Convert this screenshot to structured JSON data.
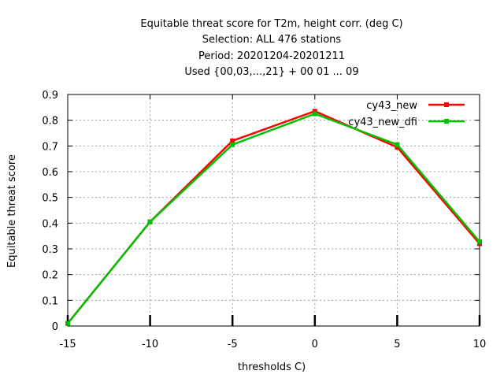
{
  "chart_data": {
    "type": "line",
    "title_lines": [
      "Equitable threat score  for T2m, height corr. (deg C)",
      "Selection: ALL    476 stations",
      "Period: 20201204-20201211",
      "Used {00,03,...,21} + 00 01 ... 09"
    ],
    "xlabel": "thresholds C)",
    "ylabel": "Equitable threat score",
    "xlim": [
      -15,
      10
    ],
    "ylim": [
      0,
      0.9
    ],
    "xticks": [
      -15,
      -10,
      -5,
      0,
      5,
      10
    ],
    "yticks": [
      0,
      0.1,
      0.2,
      0.3,
      0.4,
      0.5,
      0.6,
      0.7,
      0.8,
      0.9
    ],
    "xtick_labels": [
      "-15",
      "-10",
      "-5",
      "0",
      "5",
      "10"
    ],
    "ytick_labels": [
      "0",
      "0.1",
      "0.2",
      "0.3",
      "0.4",
      "0.5",
      "0.6",
      "0.7",
      "0.8",
      "0.9"
    ],
    "grid": true,
    "legend_position": "top-right",
    "x": [
      -15,
      -10,
      -5,
      0,
      5,
      10
    ],
    "series": [
      {
        "name": "cy43_new",
        "color": "#ff0000",
        "values": [
          0.01,
          0.405,
          0.72,
          0.835,
          0.695,
          0.32
        ]
      },
      {
        "name": "cy43_new_dfi",
        "color": "#00c000",
        "values": [
          0.01,
          0.405,
          0.705,
          0.825,
          0.705,
          0.328
        ]
      }
    ]
  }
}
